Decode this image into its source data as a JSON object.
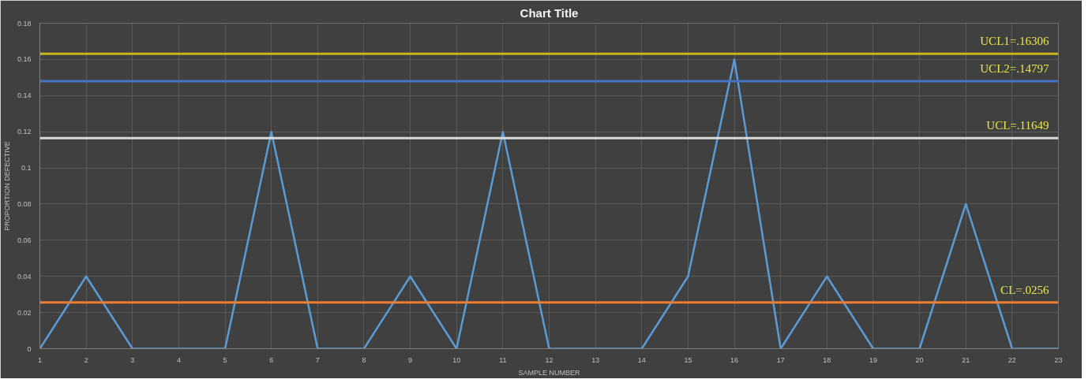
{
  "chart_data": {
    "type": "line",
    "title": "Chart Title",
    "xlabel": "SAMPLE NUMBER",
    "ylabel": "PROPORTION DEFECTIVE",
    "x": [
      1,
      2,
      3,
      4,
      5,
      6,
      7,
      8,
      9,
      10,
      11,
      12,
      13,
      14,
      15,
      16,
      17,
      18,
      19,
      20,
      21,
      22,
      23
    ],
    "series": [
      {
        "color": "#5b9bd5",
        "values": [
          0,
          0.04,
          0,
          0,
          0,
          0.12,
          0,
          0,
          0.04,
          0,
          0.12,
          0,
          0,
          0,
          0.04,
          0.16,
          0,
          0.04,
          0,
          0,
          0.08,
          0,
          0
        ]
      }
    ],
    "xlim": [
      1,
      23
    ],
    "xticks": [
      1,
      2,
      3,
      4,
      5,
      6,
      7,
      8,
      9,
      10,
      11,
      12,
      13,
      14,
      15,
      16,
      17,
      18,
      19,
      20,
      21,
      22,
      23
    ],
    "ylim": [
      0,
      0.18
    ],
    "yticks": [
      0,
      0.02,
      0.04,
      0.06,
      0.08,
      {
        "value": 0.1,
        "label": "0.1"
      },
      0.12,
      0.14,
      0.16,
      0.18
    ],
    "ref_lines": [
      {
        "axis": "y",
        "value": 0.16306,
        "label": "UCL1=.16306",
        "color": "#c8b41e"
      },
      {
        "axis": "y",
        "value": 0.14797,
        "label": "UCL2=.14797",
        "color": "#4472c4"
      },
      {
        "axis": "y",
        "value": 0.11649,
        "label": "UCL=.11649",
        "color": "#d9d9d9"
      },
      {
        "axis": "y",
        "value": 0.0256,
        "label": "CL=.0256",
        "color": "#ed7d31"
      }
    ],
    "grid": true,
    "line_style": "solid",
    "marker": "none"
  }
}
